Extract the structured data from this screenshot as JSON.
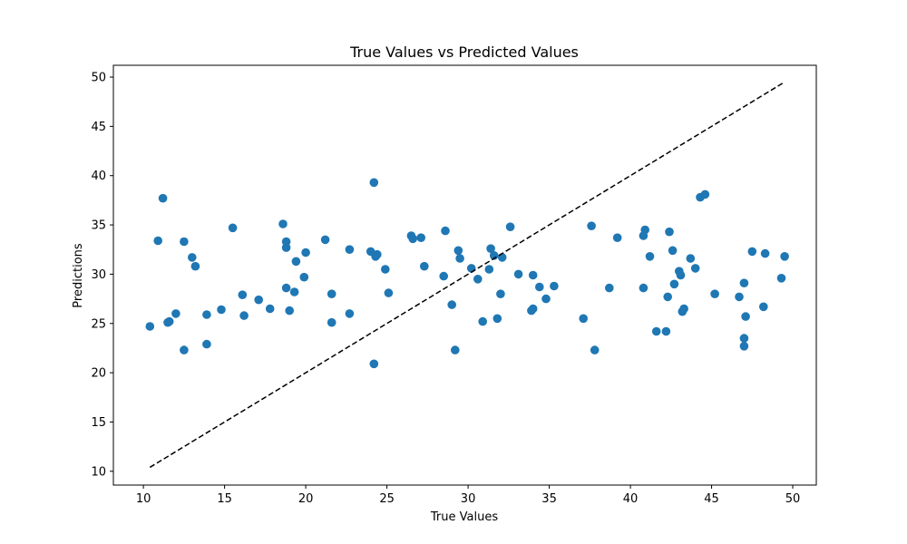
{
  "chart_data": {
    "type": "scatter",
    "title": "True Values vs Predicted Values",
    "xlabel": "True Values",
    "ylabel": "Predictions",
    "xlim": [
      8.15,
      51.45
    ],
    "ylim": [
      8.6,
      51.2
    ],
    "xticks": [
      10,
      15,
      20,
      25,
      30,
      35,
      40,
      45,
      50
    ],
    "yticks": [
      10,
      15,
      20,
      25,
      30,
      35,
      40,
      45,
      50
    ],
    "grid": false,
    "marker_color": "#1f77b4",
    "reference_line": {
      "style": "dashed",
      "color": "#000000",
      "from": [
        10.4,
        10.4
      ],
      "to": [
        49.5,
        49.5
      ]
    },
    "series": [
      {
        "points": [
          [
            10.4,
            24.7
          ],
          [
            10.9,
            33.4
          ],
          [
            11.2,
            37.7
          ],
          [
            11.5,
            25.1
          ],
          [
            11.6,
            25.2
          ],
          [
            12.0,
            26.0
          ],
          [
            12.5,
            22.3
          ],
          [
            12.5,
            33.3
          ],
          [
            13.0,
            31.7
          ],
          [
            13.2,
            30.8
          ],
          [
            13.9,
            25.9
          ],
          [
            13.9,
            22.9
          ],
          [
            14.8,
            26.4
          ],
          [
            15.5,
            34.7
          ],
          [
            16.1,
            27.9
          ],
          [
            16.2,
            25.8
          ],
          [
            17.1,
            27.4
          ],
          [
            17.8,
            26.5
          ],
          [
            18.6,
            35.1
          ],
          [
            18.8,
            33.3
          ],
          [
            18.8,
            28.6
          ],
          [
            18.8,
            32.7
          ],
          [
            19.0,
            26.3
          ],
          [
            19.3,
            28.2
          ],
          [
            19.4,
            31.3
          ],
          [
            19.9,
            29.7
          ],
          [
            20.0,
            32.2
          ],
          [
            21.2,
            33.5
          ],
          [
            21.6,
            28.0
          ],
          [
            21.6,
            25.1
          ],
          [
            22.7,
            32.5
          ],
          [
            22.7,
            26.0
          ],
          [
            24.0,
            32.3
          ],
          [
            24.2,
            39.3
          ],
          [
            24.2,
            20.9
          ],
          [
            24.3,
            31.8
          ],
          [
            24.4,
            32.0
          ],
          [
            24.9,
            30.5
          ],
          [
            25.1,
            28.1
          ],
          [
            26.5,
            33.9
          ],
          [
            26.6,
            33.6
          ],
          [
            27.1,
            33.7
          ],
          [
            27.3,
            30.8
          ],
          [
            28.5,
            29.8
          ],
          [
            28.6,
            34.4
          ],
          [
            29.0,
            26.9
          ],
          [
            29.2,
            22.3
          ],
          [
            29.4,
            32.4
          ],
          [
            29.5,
            31.6
          ],
          [
            30.2,
            30.6
          ],
          [
            30.6,
            29.5
          ],
          [
            30.9,
            25.2
          ],
          [
            31.3,
            30.5
          ],
          [
            31.4,
            32.6
          ],
          [
            31.6,
            31.9
          ],
          [
            31.8,
            25.5
          ],
          [
            32.0,
            28.0
          ],
          [
            32.1,
            31.7
          ],
          [
            32.6,
            34.8
          ],
          [
            33.1,
            30.0
          ],
          [
            33.9,
            26.3
          ],
          [
            34.0,
            29.9
          ],
          [
            34.0,
            26.5
          ],
          [
            34.4,
            28.7
          ],
          [
            34.8,
            27.5
          ],
          [
            35.3,
            28.8
          ],
          [
            37.1,
            25.5
          ],
          [
            37.6,
            34.9
          ],
          [
            37.8,
            22.3
          ],
          [
            38.7,
            28.6
          ],
          [
            39.2,
            33.7
          ],
          [
            40.8,
            33.9
          ],
          [
            40.8,
            28.6
          ],
          [
            40.9,
            34.5
          ],
          [
            41.2,
            31.8
          ],
          [
            41.6,
            24.2
          ],
          [
            42.2,
            24.2
          ],
          [
            42.3,
            27.7
          ],
          [
            42.4,
            34.3
          ],
          [
            42.6,
            32.4
          ],
          [
            42.7,
            29.0
          ],
          [
            43.0,
            30.3
          ],
          [
            43.1,
            29.9
          ],
          [
            43.2,
            26.2
          ],
          [
            43.3,
            26.5
          ],
          [
            43.7,
            31.6
          ],
          [
            44.0,
            30.6
          ],
          [
            44.3,
            37.8
          ],
          [
            44.6,
            38.1
          ],
          [
            45.2,
            28.0
          ],
          [
            46.7,
            27.7
          ],
          [
            47.0,
            29.1
          ],
          [
            47.0,
            23.5
          ],
          [
            47.0,
            22.7
          ],
          [
            47.1,
            25.7
          ],
          [
            47.5,
            32.3
          ],
          [
            48.2,
            26.7
          ],
          [
            48.3,
            32.1
          ],
          [
            49.3,
            29.6
          ],
          [
            49.5,
            31.8
          ]
        ]
      }
    ]
  }
}
